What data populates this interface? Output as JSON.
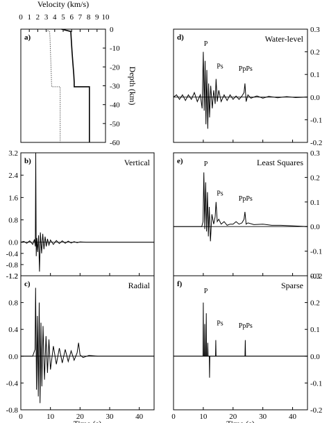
{
  "chart_data": [
    {
      "id": "a",
      "type": "line",
      "label": "a)",
      "xlabel": "Velocity (km/s)",
      "ylabel": "Depth (km)",
      "xlim": [
        0,
        10
      ],
      "ylim": [
        -60,
        0
      ],
      "xticks": [
        "0",
        "1",
        "2",
        "3",
        "4",
        "5",
        "6",
        "7",
        "8",
        "9",
        "10"
      ],
      "yticks": [
        "0",
        "-10",
        "-20",
        "-30",
        "-40",
        "-50",
        "-60"
      ],
      "series": [
        {
          "style": "solid",
          "velocity": [
            4.8,
            5.9,
            5.95,
            6.05,
            6.15,
            6.25,
            6.3,
            6.3,
            8.1,
            8.1
          ],
          "depth": [
            0,
            -1.2,
            -5,
            -12,
            -18,
            -24,
            -28,
            -30.5,
            -30.5,
            -60
          ]
        },
        {
          "style": "dotted",
          "velocity": [
            2.7,
            3.4,
            3.45,
            3.5,
            3.55,
            3.6,
            3.62,
            3.65,
            4.65,
            4.65
          ],
          "depth": [
            0,
            -1.2,
            -5,
            -12,
            -18,
            -24,
            -28,
            -30.5,
            -30.5,
            -60
          ]
        }
      ]
    },
    {
      "id": "b",
      "type": "line",
      "label": "b)",
      "title": "Vertical",
      "xlim": [
        0,
        45
      ],
      "ylim": [
        -1.2,
        3.2
      ],
      "xticks": [
        "0",
        "10",
        "20",
        "30",
        "40"
      ],
      "yticks": [
        "3.2",
        "2.4",
        "1.6",
        "0.8",
        "0.0",
        "-0.4",
        "-0.8",
        "-1.2"
      ],
      "y_tick_values": [
        3.2,
        2.4,
        1.6,
        0.8,
        0.0,
        -0.4,
        -0.8,
        -1.2
      ],
      "x": [
        0,
        1,
        2,
        3,
        4,
        4.6,
        4.9,
        5.05,
        5.2,
        5.4,
        5.7,
        6,
        6.3,
        6.6,
        7,
        7.4,
        7.8,
        8.2,
        8.6,
        9,
        9.5,
        10,
        11,
        12,
        13,
        14,
        15,
        16,
        17,
        18,
        19,
        20,
        22,
        25,
        30,
        35,
        40,
        45
      ],
      "values": [
        0,
        0.03,
        -0.04,
        0.05,
        -0.08,
        0.1,
        -0.15,
        3.2,
        -0.5,
        0.15,
        -0.35,
        0.25,
        -1.05,
        0.35,
        -0.4,
        0.3,
        -0.25,
        0.2,
        -0.15,
        0.12,
        -0.1,
        0.08,
        -0.08,
        0.06,
        -0.05,
        0.05,
        -0.04,
        0.04,
        -0.03,
        0.02,
        -0.02,
        0.01,
        0,
        0,
        0,
        0,
        0,
        0
      ]
    },
    {
      "id": "c",
      "type": "line",
      "label": "c)",
      "title": "Radial",
      "xlim": [
        0,
        45
      ],
      "ylim": [
        -0.8,
        1.2
      ],
      "xticks": [
        "0",
        "10",
        "20",
        "30",
        "40"
      ],
      "yticks": [
        "1.2",
        "0.8",
        "0.4",
        "0.0",
        "-0.4",
        "-0.8"
      ],
      "y_tick_values": [
        1.2,
        0.8,
        0.4,
        0.0,
        -0.4,
        -0.8
      ],
      "x": [
        0,
        2,
        4,
        4.8,
        5.0,
        5.3,
        5.6,
        5.9,
        6.2,
        6.5,
        6.8,
        7.1,
        7.5,
        8,
        8.5,
        9,
        9.5,
        10,
        11,
        12,
        13,
        14,
        15,
        16,
        17,
        18,
        19,
        19.5,
        20,
        21,
        23,
        26,
        30,
        35,
        40,
        45
      ],
      "values": [
        0,
        0,
        0,
        0.1,
        1.02,
        -0.5,
        0.6,
        -0.6,
        0.8,
        -0.7,
        0.5,
        -0.45,
        0.45,
        -0.35,
        0.3,
        -0.25,
        0.25,
        -0.2,
        0.15,
        -0.12,
        0.12,
        -0.1,
        0.1,
        -0.08,
        0.08,
        -0.06,
        0.05,
        0.2,
        0.02,
        -0.02,
        0.01,
        0,
        0,
        0,
        0,
        0
      ]
    },
    {
      "id": "d",
      "type": "line",
      "label": "d)",
      "title": "Water-level",
      "xlim": [
        0,
        45
      ],
      "ylim": [
        -0.2,
        0.3
      ],
      "xticks": [
        "0",
        "10",
        "20",
        "30",
        "40"
      ],
      "yticks": [
        "0.3",
        "0.2",
        "0.1",
        "0.0",
        "-0.1",
        "-0.2"
      ],
      "y_tick_values": [
        0.3,
        0.2,
        0.1,
        0.0,
        -0.1,
        -0.2
      ],
      "phases": [
        {
          "text": "P",
          "x": 10.2,
          "y": 0.22
        },
        {
          "text": "Ps",
          "x": 14.5,
          "y": 0.12
        },
        {
          "text": "PpPs",
          "x": 24.2,
          "y": 0.11
        }
      ],
      "x": [
        0,
        1,
        2,
        3,
        4,
        5,
        6,
        7,
        8,
        9,
        9.6,
        10.0,
        10.3,
        10.6,
        10.9,
        11.2,
        11.5,
        11.8,
        12.1,
        12.5,
        13,
        13.5,
        14,
        14.3,
        14.7,
        15.2,
        16,
        17,
        18,
        19,
        20,
        21,
        22,
        23,
        23.7,
        24.0,
        24.4,
        25,
        26,
        28,
        30,
        32,
        35,
        38,
        41,
        45
      ],
      "values": [
        0,
        0.01,
        -0.01,
        0.01,
        -0.015,
        0.01,
        -0.01,
        0.02,
        -0.02,
        0.01,
        -0.05,
        0.2,
        -0.06,
        0.16,
        -0.12,
        0.12,
        -0.14,
        0.06,
        -0.09,
        0.05,
        -0.05,
        0.03,
        -0.03,
        0.08,
        -0.02,
        0.03,
        -0.02,
        0.01,
        -0.015,
        0.01,
        -0.01,
        0.005,
        -0.01,
        0.005,
        0.02,
        0.06,
        -0.02,
        0.01,
        -0.005,
        0.005,
        -0.005,
        0.003,
        -0.003,
        0.002,
        -0.002,
        0
      ]
    },
    {
      "id": "e",
      "type": "line",
      "label": "e)",
      "title": "Least Squares",
      "xlim": [
        0,
        45
      ],
      "ylim": [
        -0.2,
        0.3
      ],
      "xticks": [
        "0",
        "10",
        "20",
        "30",
        "40"
      ],
      "yticks": [
        "0.3",
        "0.2",
        "0.1",
        "0.0",
        "-0.1",
        "-0.2"
      ],
      "y_tick_values": [
        0.3,
        0.2,
        0.1,
        0.0,
        -0.1,
        -0.2
      ],
      "phases": [
        {
          "text": "P",
          "x": 10.2,
          "y": 0.24
        },
        {
          "text": "Ps",
          "x": 14.5,
          "y": 0.12
        },
        {
          "text": "PpPs",
          "x": 24.2,
          "y": 0.1
        }
      ],
      "x": [
        0,
        5,
        9.5,
        9.9,
        10.2,
        10.5,
        10.8,
        11.1,
        11.4,
        11.7,
        12.0,
        12.4,
        12.9,
        13.5,
        14.0,
        14.3,
        14.7,
        15.2,
        16,
        17,
        18,
        19,
        20,
        21,
        22,
        23,
        23.7,
        24.0,
        24.4,
        25,
        27,
        30,
        33,
        36,
        40,
        45
      ],
      "values": [
        0,
        0,
        0,
        0.02,
        0.22,
        -0.01,
        0.18,
        -0.02,
        0.14,
        -0.04,
        0.08,
        -0.06,
        0.05,
        0.01,
        0.04,
        0.1,
        0.02,
        0.03,
        0.01,
        0.02,
        0.005,
        0.01,
        0.01,
        0.02,
        0.01,
        0.015,
        0.03,
        0.06,
        0.01,
        0.015,
        0.008,
        0.01,
        0.005,
        0.005,
        0.003,
        0
      ]
    },
    {
      "id": "f",
      "type": "line",
      "label": "f)",
      "title": "Sparse",
      "xlim": [
        0,
        45
      ],
      "ylim": [
        -0.2,
        0.3
      ],
      "xticks": [
        "0",
        "10",
        "20",
        "30",
        "40"
      ],
      "yticks": [
        "0.3",
        "0.2",
        "0.1",
        "0.0",
        "-0.1",
        "-0.2"
      ],
      "y_tick_values": [
        0.3,
        0.2,
        0.1,
        0.0,
        -0.1,
        -0.2
      ],
      "phases": [
        {
          "text": "P",
          "x": 10.2,
          "y": 0.23
        },
        {
          "text": "Ps",
          "x": 14.5,
          "y": 0.11
        },
        {
          "text": "PpPs",
          "x": 24.2,
          "y": 0.1
        }
      ],
      "x": [
        0,
        9.9,
        10.0,
        10.1,
        10.4,
        10.5,
        10.6,
        10.9,
        11.0,
        11.1,
        11.4,
        11.5,
        11.6,
        12.0,
        12.1,
        12.2,
        14.1,
        14.2,
        14.3,
        24.0,
        24.1,
        24.2,
        45
      ],
      "values": [
        0,
        0,
        0.2,
        0,
        0,
        0.12,
        0,
        0,
        0.16,
        0,
        0,
        0.05,
        0,
        0,
        -0.08,
        0,
        0,
        0.06,
        0,
        0,
        0.06,
        0,
        0
      ]
    }
  ],
  "shared": {
    "xlabel": "Time (s)"
  }
}
